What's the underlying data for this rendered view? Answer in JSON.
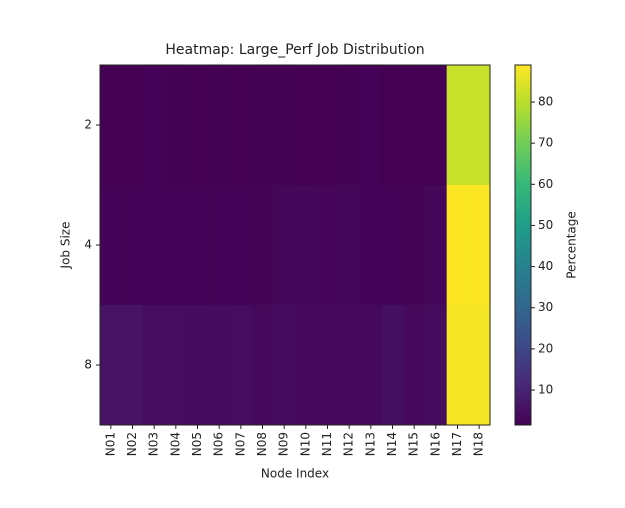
{
  "chart_data": {
    "type": "heatmap",
    "title": "Heatmap: Large_Perf Job Distribution",
    "x_label": "Node Index",
    "y_label": "Job Size",
    "colorbar_label": "Percentage",
    "colormap": "viridis",
    "categories": [
      "N01",
      "N02",
      "N03",
      "N04",
      "N05",
      "N06",
      "N07",
      "N08",
      "N09",
      "N10",
      "N11",
      "N12",
      "N13",
      "N14",
      "N15",
      "N16",
      "N17",
      "N18"
    ],
    "rows": [
      "2",
      "4",
      "8"
    ],
    "values": [
      [
        1.5,
        1.5,
        2,
        1.8,
        1.6,
        1.7,
        1.6,
        1.8,
        1.7,
        1.6,
        1.5,
        1.7,
        2,
        1.6,
        1.5,
        1.5,
        82,
        82
      ],
      [
        2.2,
        2.2,
        2.3,
        2.2,
        2.1,
        2.2,
        2.3,
        2.4,
        3,
        3,
        2.8,
        2.7,
        2.6,
        2.5,
        2.4,
        3,
        89,
        89
      ],
      [
        6,
        6,
        4.5,
        4.5,
        4,
        4,
        4.5,
        3.5,
        4,
        3.5,
        3.5,
        3.5,
        3.5,
        5,
        3.5,
        4,
        88,
        88
      ]
    ],
    "clim": [
      1.5,
      89
    ],
    "cticks": [
      10,
      20,
      30,
      40,
      50,
      60,
      70,
      80
    ]
  }
}
